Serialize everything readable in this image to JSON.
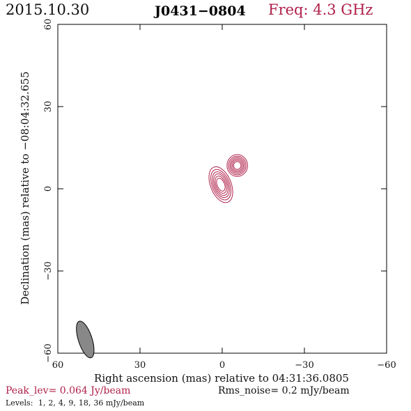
{
  "header": {
    "date": "2015.10.30",
    "source": "J0431−0804",
    "freq_label": "Freq: 4.3 GHz"
  },
  "chart_data": {
    "type": "contour",
    "xlabel": "Right ascension (mas) relative to 04:31:36.0805",
    "ylabel": "Declination (mas) relative to −08:04:32.655",
    "xlim": [
      60,
      -60
    ],
    "ylim": [
      -60,
      60
    ],
    "xticks": [
      60,
      30,
      0,
      -30,
      -60
    ],
    "xtick_labels": [
      "60",
      "30",
      "0",
      "−30",
      "−60"
    ],
    "yticks": [
      -60,
      -30,
      0,
      30,
      60
    ],
    "ytick_labels": [
      "−60",
      "−30",
      "0",
      "30",
      "60"
    ],
    "contour_color": "#b0204a",
    "beam": {
      "x": 50,
      "y": -55,
      "major_mas": 7,
      "minor_mas": 2.5,
      "pa_deg": -18,
      "fill": "#888888"
    },
    "peak_lev": "Peak_lev=  0.064 Jy/beam",
    "rms_noise": "Rms_noise=   0.2 mJy/beam",
    "levels_prefix": "Levels:",
    "levels": [
      "1,",
      "2,",
      "4,",
      "9,",
      "18,",
      "36 mJy/beam"
    ],
    "components": [
      {
        "x": 0.5,
        "y": 1.5,
        "sx": 3.0,
        "sy": 5.5,
        "pa_deg": -22
      },
      {
        "x": -5.5,
        "y": 8.5,
        "sx": 3.0,
        "sy": 3.2,
        "pa_deg": 0
      }
    ],
    "contour_scales": [
      1.0,
      0.85,
      0.72,
      0.6,
      0.48,
      0.36
    ]
  }
}
